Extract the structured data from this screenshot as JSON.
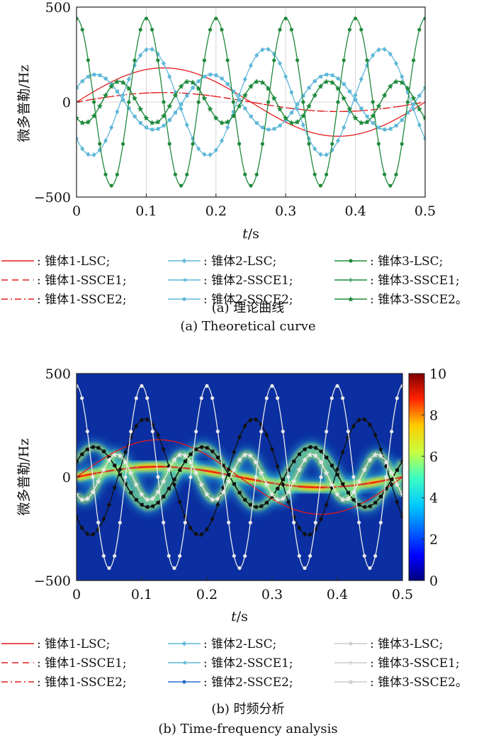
{
  "chart_data": [
    {
      "type": "line",
      "panel_caption_cn": "(a) 理论曲线",
      "panel_caption_en": "(a) Theoretical curve",
      "xlabel_italic": "t",
      "xlabel_unit": "/s",
      "ylabel": "微多普勒/Hz",
      "xlim": [
        0,
        0.5
      ],
      "ylim": [
        -500,
        500
      ],
      "xticks": [
        "0",
        "0.1",
        "0.2",
        "0.3",
        "0.4",
        "0.5"
      ],
      "yticks": [
        "500",
        "0",
        "−500"
      ],
      "grid": true,
      "series": [
        {
          "name": ": 锥体1-LSC;",
          "color": "#e41a1c",
          "style": "solid",
          "marker": "none",
          "amplitude": 180,
          "freq": 2,
          "phase": 0
        },
        {
          "name": ": 锥体1-SSCE1;",
          "color": "#e41a1c",
          "style": "dashed",
          "marker": "none",
          "amplitude": 50,
          "freq": 2,
          "phase": 0
        },
        {
          "name": ": 锥体1-SSCE2;",
          "color": "#e41a1c",
          "style": "dashdot",
          "marker": "none",
          "amplitude": 50,
          "freq": 2,
          "phase": 0
        },
        {
          "name": ": 锥体2-LSC;",
          "color": "#5fb8d8",
          "style": "solid",
          "marker": "diamond",
          "amplitude": 280,
          "freq": 6,
          "phase": 3.9
        },
        {
          "name": ": 锥体2-SSCE1;",
          "color": "#5fb8d8",
          "style": "solid",
          "marker": "triangle",
          "amplitude": 145,
          "freq": 6,
          "phase": 0.55
        },
        {
          "name": ": 锥体2-SSCE2;",
          "color": "#5fb8d8",
          "style": "solid",
          "marker": "dot",
          "amplitude": 145,
          "freq": 6,
          "phase": 0.55
        },
        {
          "name": ": 锥体3-LSC;",
          "color": "#1f8a3c",
          "style": "solid",
          "marker": "dot",
          "amplitude": 440,
          "freq": 10,
          "phase": 1.57
        },
        {
          "name": ": 锥体3-SSCE1;",
          "color": "#1f8a3c",
          "style": "solid",
          "marker": "plus",
          "amplitude": 110,
          "freq": 10,
          "phase": 4.0
        },
        {
          "name": ": 锥体3-SSCE2。",
          "color": "#1f8a3c",
          "style": "solid",
          "marker": "star",
          "amplitude": 110,
          "freq": 10,
          "phase": 4.0
        }
      ]
    },
    {
      "type": "heatmap",
      "panel_caption_cn": "(b) 时频分析",
      "panel_caption_en": "(b) Time-frequency analysis",
      "xlabel_italic": "t",
      "xlabel_unit": "/s",
      "ylabel": "微多普勒/Hz",
      "xlim": [
        0,
        0.5
      ],
      "ylim": [
        -500,
        500
      ],
      "xticks": [
        "0",
        "0.1",
        "0.2",
        "0.3",
        "0.4",
        "0.5"
      ],
      "yticks": [
        "500",
        "0",
        "−500"
      ],
      "colorbar_ticks": [
        "10",
        "8",
        "6",
        "4",
        "2",
        "0"
      ],
      "colorbar_range": [
        0,
        10
      ],
      "background_color": "#0b2fa0",
      "series": [
        {
          "name": ": 锥体1-LSC;",
          "color": "#e41a1c",
          "style": "solid",
          "marker": "none",
          "amplitude": 180,
          "freq": 2,
          "phase": 0
        },
        {
          "name": ": 锥体1-SSCE1;",
          "color": "#e41a1c",
          "style": "dashed",
          "marker": "none",
          "amplitude": 50,
          "freq": 2,
          "phase": 0
        },
        {
          "name": ": 锥体1-SSCE2;",
          "color": "#e41a1c",
          "style": "dashdot",
          "marker": "none",
          "amplitude": 50,
          "freq": 2,
          "phase": 0
        },
        {
          "name": ": 锥体2-LSC;",
          "color": "#111111",
          "style": "solid",
          "marker": "diamond",
          "amplitude": 280,
          "freq": 6,
          "phase": 3.9
        },
        {
          "name": ": 锥体2-SSCE1;",
          "color": "#111111",
          "style": "solid",
          "marker": "triangle",
          "amplitude": 145,
          "freq": 6,
          "phase": 0.55
        },
        {
          "name": ": 锥体2-SSCE2;",
          "color": "#111111",
          "style": "solid",
          "marker": "dot",
          "amplitude": 145,
          "freq": 6,
          "phase": 0.55
        },
        {
          "name": ": 锥体3-LSC;",
          "color": "#e8e8e8",
          "style": "solid",
          "marker": "dot",
          "amplitude": 440,
          "freq": 10,
          "phase": 1.57
        },
        {
          "name": ": 锥体3-SSCE1;",
          "color": "#e8e8e8",
          "style": "solid",
          "marker": "plus",
          "amplitude": 110,
          "freq": 10,
          "phase": 4.0
        },
        {
          "name": ": 锥体3-SSCE2。",
          "color": "#e8e8e8",
          "style": "solid",
          "marker": "star",
          "amplitude": 110,
          "freq": 10,
          "phase": 4.0
        }
      ],
      "legend_colors": [
        "#e41a1c",
        "#e41a1c",
        "#e41a1c",
        "#5fb8d8",
        "#5fb8d8",
        "#2a6fd0",
        "#cccccc",
        "#cccccc",
        "#cccccc"
      ]
    }
  ]
}
